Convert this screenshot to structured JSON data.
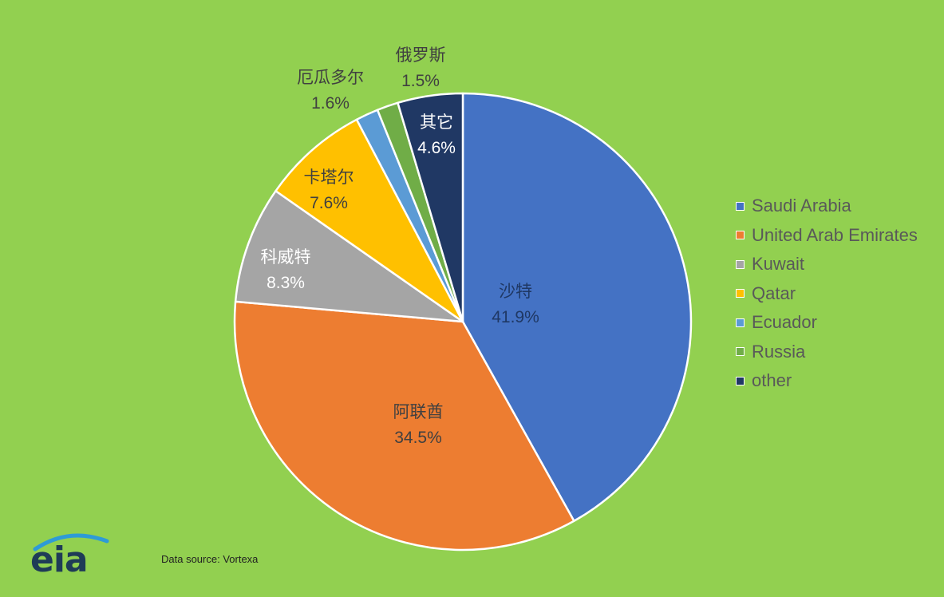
{
  "chart_data": {
    "type": "pie",
    "title": "",
    "start": "top",
    "direction": "clockwise",
    "slices": [
      {
        "label": "沙特",
        "value": 41.9,
        "percent_label": "41.9%",
        "legend": "Saudi Arabia",
        "color": "#4472c4",
        "label_color": "#1f3864"
      },
      {
        "label": "阿联酋",
        "value": 34.5,
        "percent_label": "34.5%",
        "legend": "United Arab Emirates",
        "color": "#ed7d31",
        "label_color": "#404040"
      },
      {
        "label": "科威特",
        "value": 8.3,
        "percent_label": "8.3%",
        "legend": "Kuwait",
        "color": "#a5a5a5",
        "label_color": "#ffffff"
      },
      {
        "label": "卡塔尔",
        "value": 7.6,
        "percent_label": "7.6%",
        "legend": "Qatar",
        "color": "#ffc000",
        "label_color": "#404040"
      },
      {
        "label": "厄瓜多尔",
        "value": 1.6,
        "percent_label": "1.6%",
        "legend": "Ecuador",
        "color": "#5b9bd5",
        "label_color": "#404040"
      },
      {
        "label": "俄罗斯",
        "value": 1.5,
        "percent_label": "1.5%",
        "legend": "Russia",
        "color": "#70ad47",
        "label_color": "#404040"
      },
      {
        "label": "其它",
        "value": 4.6,
        "percent_label": "4.6%",
        "legend": "other",
        "color": "#203864",
        "label_color": "#ffffff"
      }
    ],
    "legend_position": "right"
  },
  "footer": {
    "source": "Data source: Vortexa",
    "logo_text": "eia"
  }
}
